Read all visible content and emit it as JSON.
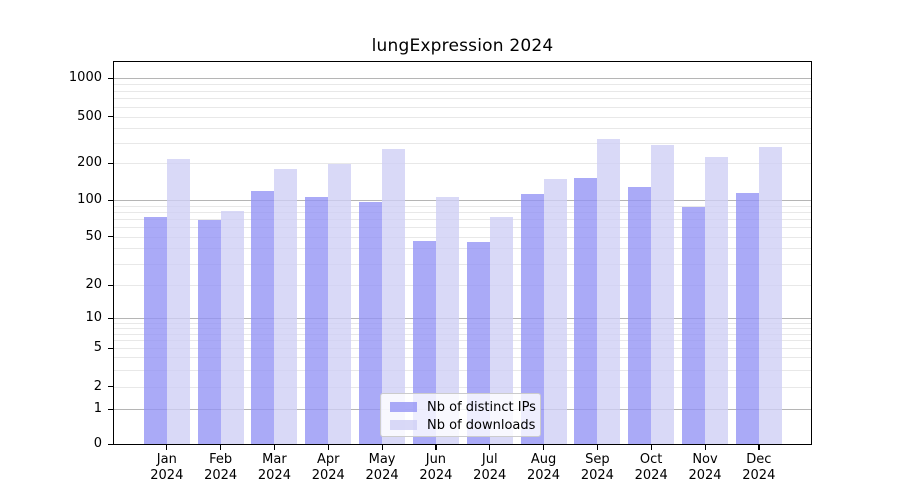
{
  "title": "lungExpression 2024",
  "year": "2024",
  "months": [
    "Jan",
    "Feb",
    "Mar",
    "Apr",
    "May",
    "Jun",
    "Jul",
    "Aug",
    "Sep",
    "Oct",
    "Nov",
    "Dec"
  ],
  "legend": {
    "items": [
      {
        "label": "Nb of distinct IPs"
      },
      {
        "label": "Nb of downloads"
      }
    ]
  },
  "colors": {
    "distinct_ips": "#9292f5",
    "downloads": "#cecef5",
    "grid_major": "#b5b5b5",
    "grid_minor": "#e8e8e8",
    "axis": "#000000",
    "legend_border": "#cccccc"
  },
  "chart_data": {
    "type": "bar",
    "title": "lungExpression 2024",
    "categories": [
      "Jan 2024",
      "Feb 2024",
      "Mar 2024",
      "Apr 2024",
      "May 2024",
      "Jun 2024",
      "Jul 2024",
      "Aug 2024",
      "Sep 2024",
      "Oct 2024",
      "Nov 2024",
      "Dec 2024"
    ],
    "series": [
      {
        "name": "Nb of distinct IPs",
        "key": "distinct-ips",
        "color": "#9292f5",
        "values": [
          73,
          68,
          118,
          106,
          97,
          46,
          45,
          112,
          152,
          128,
          88,
          115
        ]
      },
      {
        "name": "Nb of downloads",
        "key": "downloads",
        "color": "#cecef5",
        "values": [
          220,
          81,
          180,
          197,
          265,
          105,
          72,
          148,
          325,
          288,
          226,
          274
        ]
      }
    ],
    "xlabel": "",
    "ylabel": "",
    "yscale": "symlog",
    "y_ticks": [
      0,
      1,
      2,
      5,
      10,
      20,
      50,
      100,
      200,
      500,
      1000
    ],
    "ylim": [
      0,
      1400
    ],
    "grid": true,
    "legend_position": "lower center"
  }
}
